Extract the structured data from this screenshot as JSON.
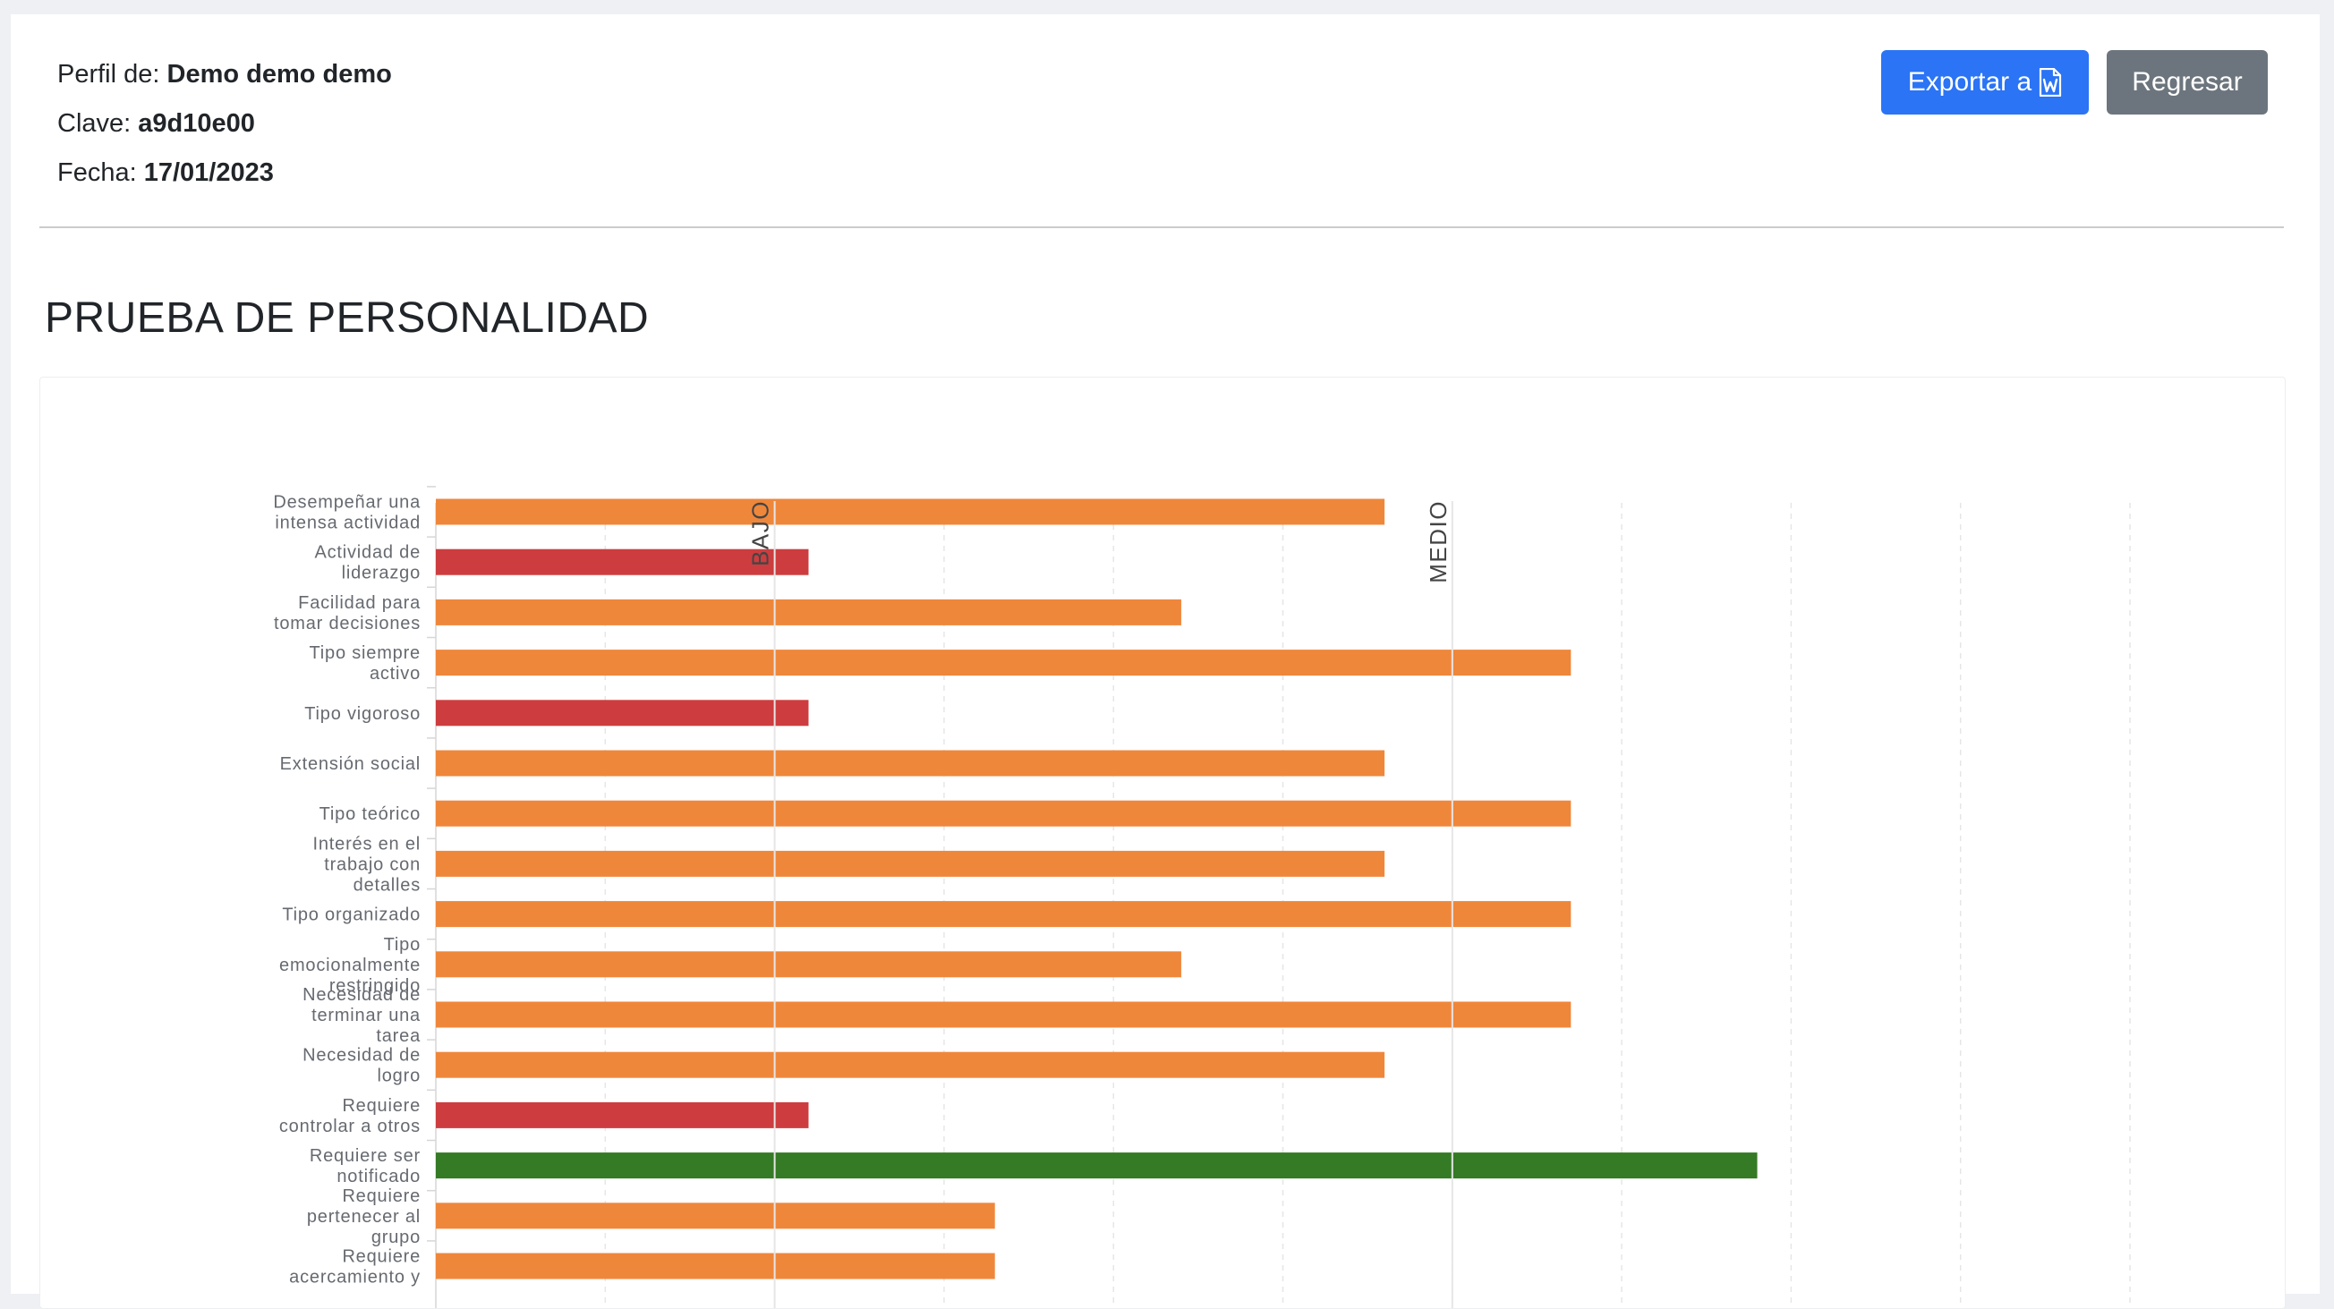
{
  "header": {
    "profile_label": "Perfil de:",
    "profile_value": "Demo demo demo",
    "key_label": "Clave:",
    "key_value": "a9d10e00",
    "date_label": "Fecha:",
    "date_value": "17/01/2023"
  },
  "actions": {
    "export_label": "Exportar a",
    "export_icon": "word-file-icon",
    "back_label": "Regresar"
  },
  "section_title": "PRUEBA DE PERSONALIDAD",
  "colors": {
    "low": "#cd3d3f",
    "medium": "#ef873b",
    "high": "#357a24",
    "grid": "#e6e6e6",
    "annotation_line": "#e6e6e6"
  },
  "chart_data": {
    "type": "bar",
    "orientation": "horizontal",
    "xlim": [
      0,
      10
    ],
    "grid": true,
    "annotations": [
      {
        "label": "BAJO",
        "x": 2
      },
      {
        "label": "MEDIO",
        "x": 6
      }
    ],
    "categories": [
      [
        "Desempeñar una",
        "intensa actividad"
      ],
      [
        "Actividad de",
        "liderazgo"
      ],
      [
        "Facilidad para",
        "tomar decisiones"
      ],
      [
        "Tipo siempre",
        "activo"
      ],
      [
        "Tipo vigoroso"
      ],
      [
        "Extensión social"
      ],
      [
        "Tipo teórico"
      ],
      [
        "Interés en el",
        "trabajo con",
        "detalles"
      ],
      [
        "Tipo organizado"
      ],
      [
        "Tipo",
        "emocionalmente",
        "restringido"
      ],
      [
        "Necesidad de",
        "terminar una",
        "tarea"
      ],
      [
        "Necesidad de",
        "logro"
      ],
      [
        "Requiere",
        "controlar a otros"
      ],
      [
        "Requiere ser",
        "notificado"
      ],
      [
        "Requiere",
        "pertenecer al",
        "grupo"
      ],
      [
        "Requiere",
        "acercamiento y"
      ]
    ],
    "values": [
      5.6,
      2.2,
      4.4,
      6.7,
      2.2,
      5.6,
      6.7,
      5.6,
      6.7,
      4.4,
      6.7,
      5.6,
      2.2,
      7.8,
      3.3,
      3.3
    ],
    "levels": [
      "medium",
      "low",
      "medium",
      "medium",
      "low",
      "medium",
      "medium",
      "medium",
      "medium",
      "medium",
      "medium",
      "medium",
      "low",
      "high",
      "medium",
      "medium"
    ]
  }
}
